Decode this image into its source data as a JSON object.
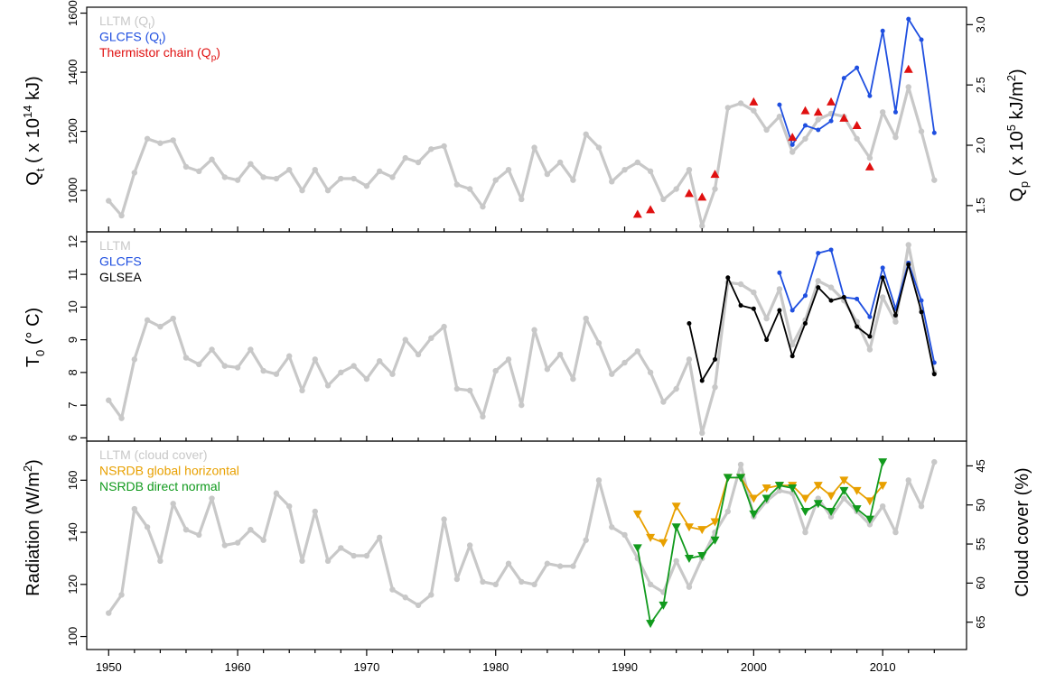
{
  "chart_data": [
    {
      "type": "line",
      "panel": "top",
      "ylabel_left": "Qt ( x 10^14 kJ)",
      "ylabel_right": "Qp ( x 10^5 kJ/m^2)",
      "ylim": [
        860,
        1620
      ],
      "yticks": [
        1000,
        1200,
        1400,
        1600
      ],
      "y2_ticks": [
        "1.5",
        "2.0",
        "2.5",
        "3.0"
      ],
      "y2_tick_values": [
        949,
        1153,
        1357,
        1561
      ],
      "legend": [
        {
          "name": "LLTM (Qt)",
          "color": "#c8c8c8"
        },
        {
          "name": "GLCFS (Qt)",
          "color": "#1f4fe0"
        },
        {
          "name": "Thermistor chain (Qp)",
          "color": "#e01010"
        }
      ],
      "series": [
        {
          "name": "LLTM (Qt)",
          "color": "#c8c8c8",
          "marker": "dot",
          "x": [
            1950,
            1951,
            1952,
            1953,
            1954,
            1955,
            1956,
            1957,
            1958,
            1959,
            1960,
            1961,
            1962,
            1963,
            1964,
            1965,
            1966,
            1967,
            1968,
            1969,
            1970,
            1971,
            1972,
            1973,
            1974,
            1975,
            1976,
            1977,
            1978,
            1979,
            1980,
            1981,
            1982,
            1983,
            1984,
            1985,
            1986,
            1987,
            1988,
            1989,
            1990,
            1991,
            1992,
            1993,
            1994,
            1995,
            1996,
            1997,
            1998,
            1999,
            2000,
            2001,
            2002,
            2003,
            2004,
            2005,
            2006,
            2007,
            2008,
            2009,
            2010,
            2011,
            2012,
            2013,
            2014
          ],
          "y": [
            965,
            915,
            1060,
            1175,
            1160,
            1170,
            1080,
            1065,
            1105,
            1045,
            1035,
            1090,
            1045,
            1040,
            1070,
            1000,
            1070,
            1000,
            1040,
            1040,
            1015,
            1065,
            1045,
            1110,
            1095,
            1140,
            1150,
            1020,
            1005,
            945,
            1035,
            1070,
            970,
            1145,
            1055,
            1095,
            1035,
            1190,
            1145,
            1030,
            1070,
            1095,
            1065,
            970,
            1005,
            1070,
            880,
            1005,
            1280,
            1295,
            1270,
            1205,
            1250,
            1130,
            1175,
            1240,
            1260,
            1250,
            1175,
            1110,
            1265,
            1180,
            1350,
            1200,
            1035
          ]
        },
        {
          "name": "GLCFS (Qt)",
          "color": "#1f4fe0",
          "marker": "dot",
          "x": [
            2002,
            2003,
            2004,
            2005,
            2006,
            2007,
            2008,
            2009,
            2010,
            2011,
            2012,
            2013,
            2014
          ],
          "y": [
            1290,
            1155,
            1220,
            1205,
            1235,
            1380,
            1415,
            1320,
            1540,
            1265,
            1580,
            1510,
            1195
          ]
        },
        {
          "name": "Thermistor chain (Qp)",
          "color": "#e01010",
          "marker": "triangle-up",
          "x": [
            1991,
            1992,
            1995,
            1996,
            1997,
            2000,
            2003,
            2004,
            2005,
            2006,
            2007,
            2008,
            2009,
            2012
          ],
          "y": [
            920,
            935,
            990,
            978,
            1055,
            1300,
            1180,
            1270,
            1265,
            1300,
            1245,
            1220,
            1080,
            1410
          ]
        }
      ]
    },
    {
      "type": "line",
      "panel": "middle",
      "ylabel_left": "T0 (° C)",
      "ylim": [
        5.9,
        12.3
      ],
      "yticks": [
        6,
        7,
        8,
        9,
        10,
        11,
        12
      ],
      "legend": [
        {
          "name": "LLTM",
          "color": "#c8c8c8"
        },
        {
          "name": "GLCFS",
          "color": "#1f4fe0"
        },
        {
          "name": "GLSEA",
          "color": "#000000"
        }
      ],
      "series": [
        {
          "name": "LLTM",
          "color": "#c8c8c8",
          "marker": "dot",
          "x": [
            1950,
            1951,
            1952,
            1953,
            1954,
            1955,
            1956,
            1957,
            1958,
            1959,
            1960,
            1961,
            1962,
            1963,
            1964,
            1965,
            1966,
            1967,
            1968,
            1969,
            1970,
            1971,
            1972,
            1973,
            1974,
            1975,
            1976,
            1977,
            1978,
            1979,
            1980,
            1981,
            1982,
            1983,
            1984,
            1985,
            1986,
            1987,
            1988,
            1989,
            1990,
            1991,
            1992,
            1993,
            1994,
            1995,
            1996,
            1997,
            1998,
            1999,
            2000,
            2001,
            2002,
            2003,
            2004,
            2005,
            2006,
            2007,
            2008,
            2009,
            2010,
            2011,
            2012,
            2013,
            2014
          ],
          "y": [
            7.15,
            6.6,
            8.4,
            9.6,
            9.4,
            9.65,
            8.45,
            8.25,
            8.7,
            8.2,
            8.15,
            8.7,
            8.05,
            7.95,
            8.5,
            7.45,
            8.4,
            7.6,
            8.0,
            8.2,
            7.8,
            8.35,
            7.95,
            9.0,
            8.55,
            9.05,
            9.4,
            7.5,
            7.45,
            6.65,
            8.05,
            8.4,
            7.0,
            9.3,
            8.1,
            8.55,
            7.8,
            9.65,
            8.9,
            7.95,
            8.3,
            8.65,
            8.0,
            7.1,
            7.5,
            8.4,
            6.15,
            7.55,
            10.75,
            10.7,
            10.45,
            9.65,
            10.55,
            8.85,
            9.6,
            10.8,
            10.6,
            10.2,
            9.55,
            8.7,
            10.3,
            9.55,
            11.9,
            9.95,
            8.0
          ]
        },
        {
          "name": "GLCFS",
          "color": "#1f4fe0",
          "marker": "dot",
          "x": [
            2002,
            2003,
            2004,
            2005,
            2006,
            2007,
            2008,
            2009,
            2010,
            2011,
            2012,
            2013,
            2014
          ],
          "y": [
            11.05,
            9.9,
            10.35,
            11.65,
            11.75,
            10.3,
            10.25,
            9.7,
            11.2,
            9.95,
            11.35,
            10.2,
            8.3
          ]
        },
        {
          "name": "GLSEA",
          "color": "#000000",
          "marker": "dot",
          "x": [
            1995,
            1996,
            1997,
            1998,
            1999,
            2000,
            2001,
            2002,
            2003,
            2004,
            2005,
            2006,
            2007,
            2008,
            2009,
            2010,
            2011,
            2012,
            2013,
            2014
          ],
          "y": [
            9.5,
            7.75,
            8.4,
            10.9,
            10.05,
            9.95,
            9.0,
            9.9,
            8.5,
            9.5,
            10.6,
            10.2,
            10.3,
            9.4,
            9.1,
            10.9,
            9.75,
            11.3,
            9.85,
            7.95
          ]
        }
      ]
    },
    {
      "type": "line",
      "panel": "bottom",
      "xlabel": "",
      "ylabel_left": "Radiation (W/m^2)",
      "ylabel_right": "Cloud cover (%)",
      "ylim": [
        95,
        175
      ],
      "yticks": [
        100,
        120,
        140,
        160
      ],
      "y2_ticks": [
        "45",
        "50",
        "55",
        "60",
        "65"
      ],
      "y2_tick_values": [
        165.5,
        150.5,
        135.5,
        120.5,
        105.5
      ],
      "xlim": [
        1948.3,
        2016.5
      ],
      "xticks": [
        1950,
        1960,
        1970,
        1980,
        1990,
        2000,
        2010
      ],
      "legend": [
        {
          "name": "LLTM (cloud cover)",
          "color": "#c8c8c8"
        },
        {
          "name": "NSRDB global horizontal",
          "color": "#e8a000"
        },
        {
          "name": "NSRDB direct normal",
          "color": "#119a1d"
        }
      ],
      "series": [
        {
          "name": "LLTM (cloud cover)",
          "color": "#c8c8c8",
          "marker": "dot",
          "x": [
            1950,
            1951,
            1952,
            1953,
            1954,
            1955,
            1956,
            1957,
            1958,
            1959,
            1960,
            1961,
            1962,
            1963,
            1964,
            1965,
            1966,
            1967,
            1968,
            1969,
            1970,
            1971,
            1972,
            1973,
            1974,
            1975,
            1976,
            1977,
            1978,
            1979,
            1980,
            1981,
            1982,
            1983,
            1984,
            1985,
            1986,
            1987,
            1988,
            1989,
            1990,
            1991,
            1992,
            1993,
            1994,
            1995,
            1996,
            1997,
            1998,
            1999,
            2000,
            2001,
            2002,
            2003,
            2004,
            2005,
            2006,
            2007,
            2008,
            2009,
            2010,
            2011,
            2012,
            2013,
            2014
          ],
          "y": [
            109,
            116,
            149,
            142,
            129,
            151,
            141,
            139,
            153,
            135,
            136,
            141,
            137,
            155,
            150,
            129,
            148,
            129,
            134,
            131,
            131,
            138,
            118,
            115,
            112,
            116,
            145,
            122,
            135,
            121,
            120,
            128,
            121,
            120,
            128,
            127,
            127,
            137,
            160,
            142,
            139,
            130,
            120,
            117,
            129,
            119,
            130,
            140,
            148,
            166,
            146,
            152,
            156,
            155,
            140,
            153,
            146,
            153,
            148,
            143,
            150,
            140,
            160,
            150,
            167
          ]
        },
        {
          "name": "NSRDB global horizontal",
          "color": "#e8a000",
          "marker": "triangle-down",
          "x": [
            1991,
            1992,
            1993,
            1994,
            1995,
            1996,
            1997,
            1998,
            1999,
            2000,
            2001,
            2002,
            2003,
            2004,
            2005,
            2006,
            2007,
            2008,
            2009,
            2010
          ],
          "y": [
            147,
            138,
            136,
            150,
            142,
            141,
            144,
            161,
            161,
            153,
            157,
            158,
            158,
            153,
            158,
            154,
            160,
            156,
            152,
            158
          ]
        },
        {
          "name": "NSRDB direct normal",
          "color": "#119a1d",
          "marker": "triangle-down",
          "x": [
            1991,
            1992,
            1993,
            1994,
            1995,
            1996,
            1997,
            1998,
            1999,
            2000,
            2001,
            2002,
            2003,
            2004,
            2005,
            2006,
            2007,
            2008,
            2009,
            2010
          ],
          "y": [
            134,
            105,
            112,
            142,
            130,
            131,
            137,
            161,
            161,
            147,
            153,
            158,
            157,
            148,
            151,
            148,
            156,
            149,
            145,
            167
          ]
        }
      ]
    }
  ]
}
